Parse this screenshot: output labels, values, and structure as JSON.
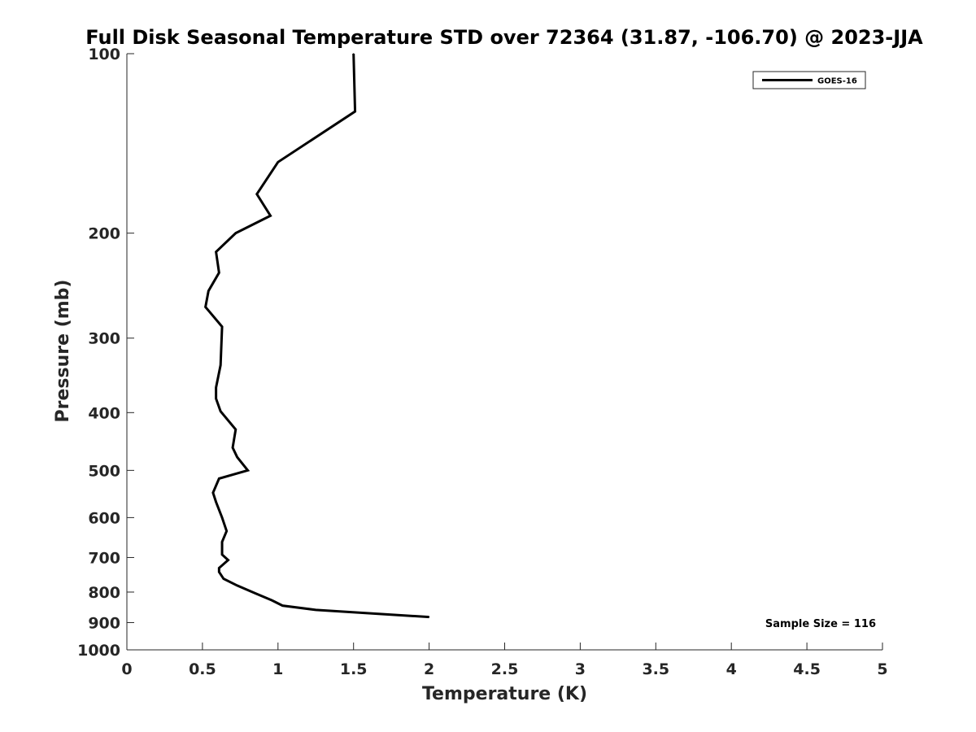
{
  "chart_data": {
    "type": "line",
    "title": "Full Disk Seasonal Temperature STD over 72364 (31.87, -106.70) @ 2023-JJA",
    "xlabel": "Temperature (K)",
    "ylabel": "Pressure (mb)",
    "xlim": [
      0,
      5
    ],
    "ylim": [
      100,
      1000
    ],
    "yscale": "log",
    "y_reversed": true,
    "xticks": [
      0,
      0.5,
      1,
      1.5,
      2,
      2.5,
      3,
      3.5,
      4,
      4.5,
      5
    ],
    "xtick_labels": [
      "0",
      "0.5",
      "1",
      "1.5",
      "2",
      "2.5",
      "3",
      "3.5",
      "4",
      "4.5",
      "5"
    ],
    "yticks": [
      100,
      200,
      300,
      400,
      500,
      600,
      700,
      800,
      900,
      1000
    ],
    "ytick_labels": [
      "100",
      "200",
      "300",
      "400",
      "500",
      "600",
      "700",
      "800",
      "900",
      "1000"
    ],
    "grid": false,
    "legend_position": "top-right",
    "annotation": "Sample Size = 116",
    "series": [
      {
        "name": "GOES-16",
        "color": "#000000",
        "points": [
          {
            "x": 1.5,
            "y": 100
          },
          {
            "x": 1.51,
            "y": 125
          },
          {
            "x": 1.0,
            "y": 152
          },
          {
            "x": 0.86,
            "y": 172
          },
          {
            "x": 0.95,
            "y": 187
          },
          {
            "x": 0.72,
            "y": 200
          },
          {
            "x": 0.59,
            "y": 215
          },
          {
            "x": 0.61,
            "y": 233
          },
          {
            "x": 0.54,
            "y": 250
          },
          {
            "x": 0.52,
            "y": 266
          },
          {
            "x": 0.63,
            "y": 287
          },
          {
            "x": 0.62,
            "y": 333
          },
          {
            "x": 0.59,
            "y": 363
          },
          {
            "x": 0.59,
            "y": 379
          },
          {
            "x": 0.62,
            "y": 398
          },
          {
            "x": 0.72,
            "y": 427
          },
          {
            "x": 0.7,
            "y": 458
          },
          {
            "x": 0.73,
            "y": 475
          },
          {
            "x": 0.8,
            "y": 500
          },
          {
            "x": 0.61,
            "y": 516
          },
          {
            "x": 0.57,
            "y": 545
          },
          {
            "x": 0.59,
            "y": 565
          },
          {
            "x": 0.63,
            "y": 600
          },
          {
            "x": 0.66,
            "y": 632
          },
          {
            "x": 0.63,
            "y": 659
          },
          {
            "x": 0.63,
            "y": 692
          },
          {
            "x": 0.67,
            "y": 707
          },
          {
            "x": 0.61,
            "y": 729
          },
          {
            "x": 0.61,
            "y": 740
          },
          {
            "x": 0.64,
            "y": 760
          },
          {
            "x": 0.73,
            "y": 780
          },
          {
            "x": 0.85,
            "y": 804
          },
          {
            "x": 0.96,
            "y": 826
          },
          {
            "x": 1.03,
            "y": 843
          },
          {
            "x": 1.25,
            "y": 857
          },
          {
            "x": 2.0,
            "y": 881
          }
        ]
      }
    ]
  }
}
